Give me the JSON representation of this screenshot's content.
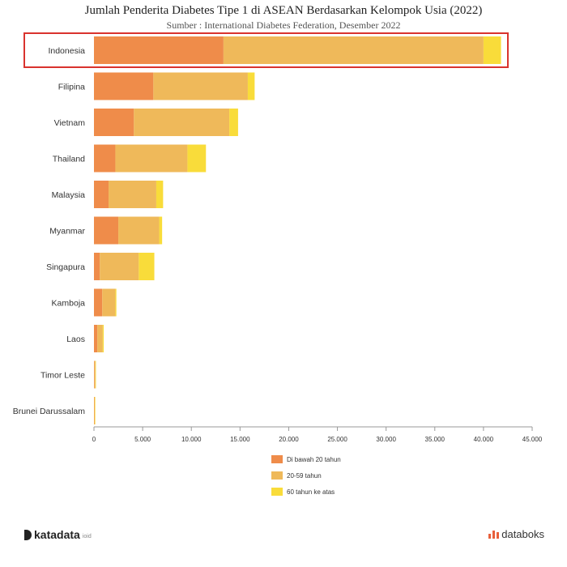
{
  "chart_data": {
    "type": "bar",
    "orientation": "horizontal",
    "stacked": true,
    "title": "Jumlah Penderita Diabetes Tipe 1 di ASEAN Berdasarkan Kelompok Usia (2022)",
    "subtitle": "Sumber : International Diabetes Federation, Desember 2022",
    "categories": [
      "Indonesia",
      "Filipina",
      "Vietnam",
      "Thailand",
      "Malaysia",
      "Myanmar",
      "Singapura",
      "Kamboja",
      "Laos",
      "Timor Leste",
      "Brunei Darussalam"
    ],
    "series": [
      {
        "name": "Di bawah 20 tahun",
        "color": "#ef8c4a",
        "values": [
          13300,
          6100,
          4100,
          2200,
          1500,
          2500,
          600,
          850,
          350,
          50,
          30
        ]
      },
      {
        "name": "20-59 tahun",
        "color": "#efb95a",
        "values": [
          26700,
          9700,
          9800,
          7400,
          4900,
          4200,
          4000,
          1350,
          550,
          100,
          60
        ]
      },
      {
        "name": "60 tahun ke atas",
        "color": "#f9dc3a",
        "values": [
          1800,
          700,
          900,
          1900,
          700,
          300,
          1600,
          100,
          100,
          10,
          10
        ]
      }
    ],
    "xlim": [
      0,
      45000
    ],
    "xticks": [
      "0",
      "5.000",
      "10.000",
      "15.000",
      "20.000",
      "25.000",
      "30.000",
      "35.000",
      "40.000",
      "45.000"
    ],
    "legend_position": "bottom",
    "highlighted_category": "Indonesia",
    "highlight_color": "#d9332e",
    "grid": false
  },
  "footer": {
    "brand_left": "katadata",
    "brand_left_small": "ioid",
    "brand_right": "databoks"
  }
}
